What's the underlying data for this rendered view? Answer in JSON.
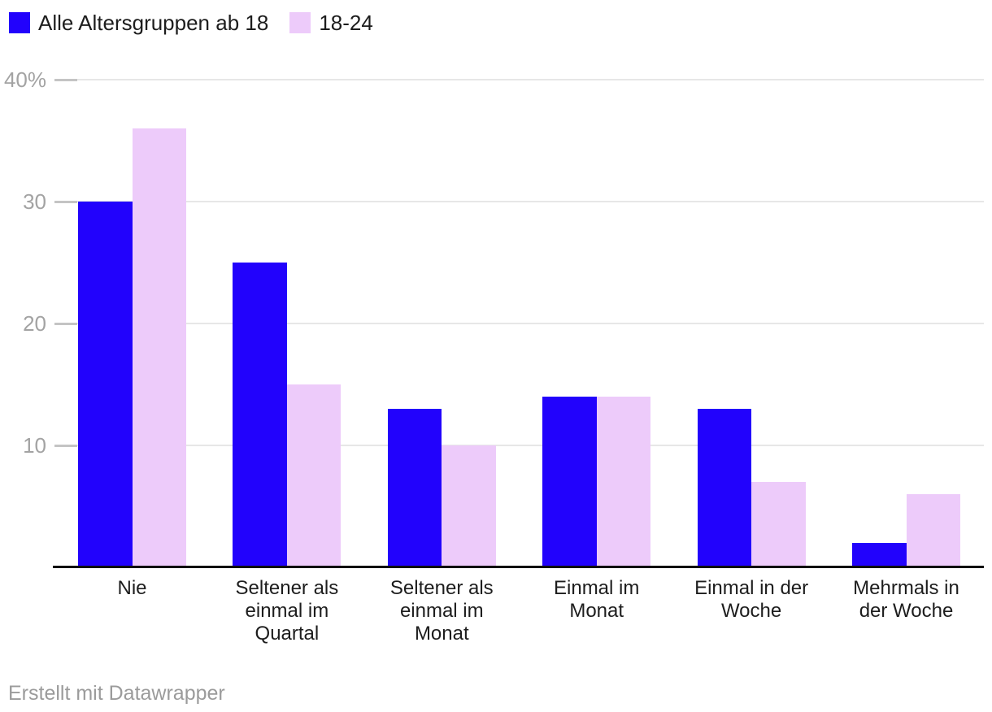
{
  "legend": {
    "items": [
      {
        "label": "Alle Altersgruppen ab 18",
        "color": "#2202fc"
      },
      {
        "label": "18-24",
        "color": "#edcbfa"
      }
    ]
  },
  "footer": {
    "credit": "Erstellt mit Datawrapper"
  },
  "chart_data": {
    "type": "bar",
    "categories": [
      "Nie",
      "Seltener als einmal im Quartal",
      "Seltener als einmal im Monat",
      "Einmal im Monat",
      "Einmal in der Woche",
      "Mehrmals in der Woche"
    ],
    "series": [
      {
        "name": "Alle Altersgruppen ab 18",
        "color": "#2202fc",
        "values": [
          30,
          25,
          13,
          14,
          13,
          2
        ]
      },
      {
        "name": "18-24",
        "color": "#edcbfa",
        "values": [
          36,
          15,
          10,
          14,
          7,
          6
        ]
      }
    ],
    "title": "",
    "xlabel": "",
    "ylabel": "",
    "ylim": [
      0,
      40
    ],
    "yticks": [
      {
        "value": 10,
        "label": "10"
      },
      {
        "value": 20,
        "label": "20"
      },
      {
        "value": 30,
        "label": "30"
      },
      {
        "value": 40,
        "label": "40%"
      }
    ],
    "grid": true,
    "legend_position": "top-left",
    "unit": "%"
  }
}
